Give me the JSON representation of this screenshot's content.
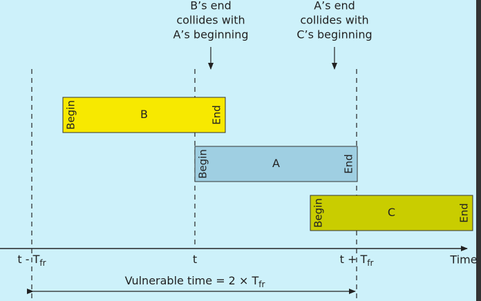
{
  "annotations": [
    {
      "lines": [
        "B’s end",
        "collides with",
        "A’s beginning"
      ]
    },
    {
      "lines": [
        "A’s end",
        "collides with",
        "C’s beginning"
      ]
    }
  ],
  "frames": [
    {
      "label": "B",
      "begin": "Begin",
      "end": "End"
    },
    {
      "label": "A",
      "begin": "Begin",
      "end": "End"
    },
    {
      "label": "C",
      "begin": "Begin",
      "end": "End"
    }
  ],
  "axis": {
    "ticks": [
      {
        "main": "t - T",
        "sub": "fr"
      },
      {
        "main": "t"
      },
      {
        "main": "t + T",
        "sub": "fr"
      }
    ],
    "label": "Time"
  },
  "vulnerable": {
    "main": "Vulnerable time = 2 × T",
    "sub": "fr"
  }
}
